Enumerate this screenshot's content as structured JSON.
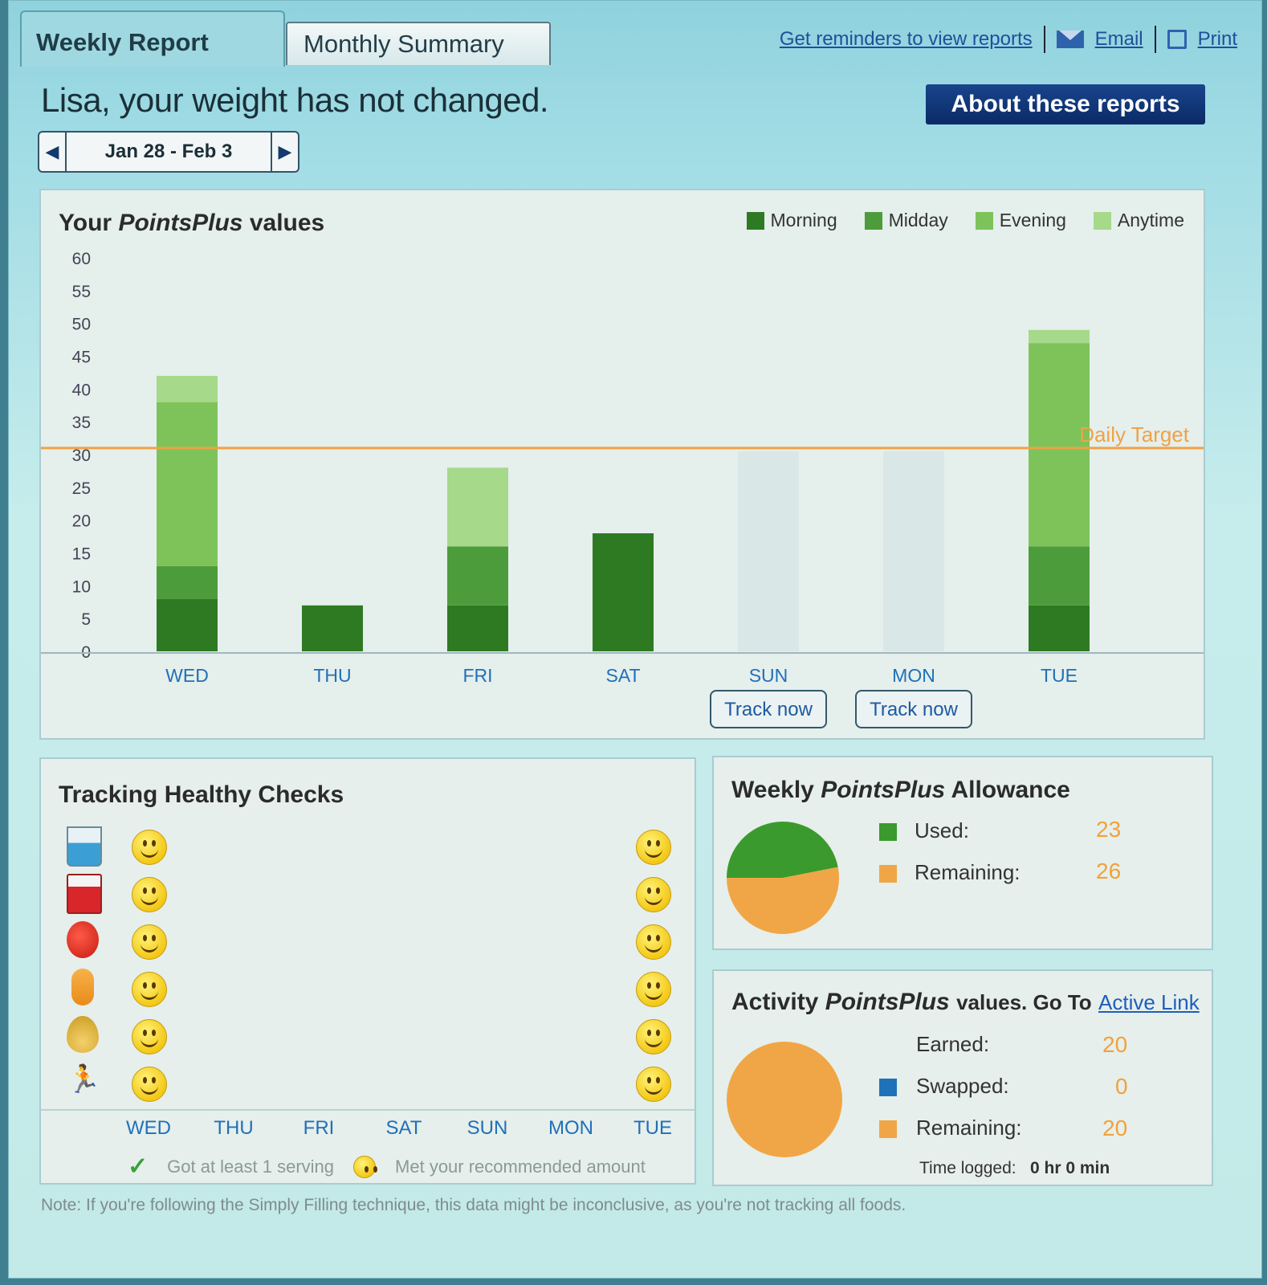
{
  "tabs": {
    "weekly": "Weekly Report",
    "monthly": "Monthly Summary"
  },
  "top_links": {
    "reminders": "Get reminders to view reports",
    "email": "Email",
    "print": "Print"
  },
  "headline": "Lisa, your weight has not changed.",
  "about_button": "About these reports",
  "date_range": "Jan 28 - Feb 3",
  "chart_title_prefix": "Your",
  "chart_title_em": "PointsPlus",
  "chart_title_suffix": "values",
  "target_label": "Daily Target",
  "track_now": "Track now",
  "colors": {
    "morning": "#2e7a23",
    "midday": "#4d9c3b",
    "evening": "#7dc35a",
    "anytime": "#a6d98a",
    "target": "#f0a246",
    "used": "#3b9a2d",
    "remaining": "#f0a646",
    "swapped": "#1f72b8"
  },
  "chart_data": {
    "type": "bar",
    "stacked": true,
    "categories": [
      "WED",
      "THU",
      "FRI",
      "SAT",
      "SUN",
      "MON",
      "TUE"
    ],
    "series": [
      {
        "name": "Morning",
        "values": [
          8,
          7,
          7,
          18,
          0,
          0,
          7
        ]
      },
      {
        "name": "Midday",
        "values": [
          5,
          0,
          9,
          0,
          0,
          0,
          9
        ]
      },
      {
        "name": "Evening",
        "values": [
          25,
          0,
          0,
          0,
          0,
          0,
          31
        ]
      },
      {
        "name": "Anytime",
        "values": [
          4,
          0,
          12,
          0,
          0,
          0,
          2
        ]
      }
    ],
    "untracked": [
      "SUN",
      "MON"
    ],
    "y_ticks": [
      0,
      5,
      10,
      15,
      20,
      25,
      30,
      35,
      40,
      45,
      50,
      55,
      60
    ],
    "ylim": [
      0,
      60
    ],
    "daily_target": 31
  },
  "healthy_checks": {
    "title": "Tracking Healthy Checks",
    "items": [
      "water-glass-icon",
      "milk-carton-icon",
      "apple-icon",
      "multivitamin-icon",
      "oil-drop-icon",
      "activity-person-icon"
    ],
    "days": [
      "WED",
      "THU",
      "FRI",
      "SAT",
      "SUN",
      "MON",
      "TUE"
    ],
    "legend_served": "Got at least 1 serving",
    "legend_met": "Met your recommended amount"
  },
  "allowance": {
    "title_prefix": "Weekly",
    "title_em": "PointsPlus",
    "title_suffix": "Allowance",
    "used_label": "Used:",
    "used_value": "23",
    "remaining_label": "Remaining:",
    "remaining_value": "26"
  },
  "activity": {
    "title_prefix": "Activity",
    "title_em": "PointsPlus",
    "title_suffix": "values. Go To",
    "link": "Active Link",
    "earned_label": "Earned:",
    "earned_value": "20",
    "swapped_label": "Swapped:",
    "swapped_value": "0",
    "remaining_label": "Remaining:",
    "remaining_value": "20",
    "time_label": "Time logged:",
    "time_value": "0 hr 0 min"
  },
  "note": "Note: If you're following the Simply Filling technique, this data might be inconclusive, as you're not tracking all foods."
}
